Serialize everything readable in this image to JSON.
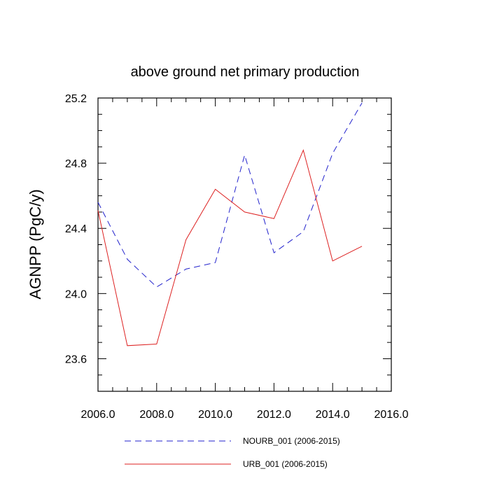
{
  "chart_data": {
    "type": "line",
    "title": "above ground net primary production",
    "xlabel": "",
    "ylabel": "AGNPP  (PgC/y)",
    "xlim": [
      2006.0,
      2016.0
    ],
    "ylim": [
      23.4,
      25.2
    ],
    "x_ticks": [
      2006.0,
      2008.0,
      2010.0,
      2012.0,
      2014.0,
      2016.0
    ],
    "x_tick_labels": [
      "2006.0",
      "2008.0",
      "2010.0",
      "2012.0",
      "2014.0",
      "2016.0"
    ],
    "y_ticks": [
      23.6,
      24.0,
      24.4,
      24.8,
      25.2
    ],
    "y_tick_labels": [
      "23.6",
      "24.0",
      "24.4",
      "24.8",
      "25.2"
    ],
    "x": [
      2006,
      2007,
      2008,
      2009,
      2010,
      2011,
      2012,
      2013,
      2014,
      2015
    ],
    "series": [
      {
        "name": "NOURB_001 (2006-2015)",
        "style": "dashed",
        "color": "#2222cc",
        "values": [
          24.56,
          24.21,
          24.04,
          24.15,
          24.19,
          24.85,
          24.25,
          24.38,
          24.86,
          25.17
        ]
      },
      {
        "name": "URB_001 (2006-2015)",
        "style": "solid",
        "color": "#dd2222",
        "values": [
          24.51,
          23.68,
          23.69,
          24.33,
          24.64,
          24.5,
          24.46,
          24.88,
          24.2,
          24.29
        ]
      }
    ],
    "legend_position": "bottom-center"
  }
}
